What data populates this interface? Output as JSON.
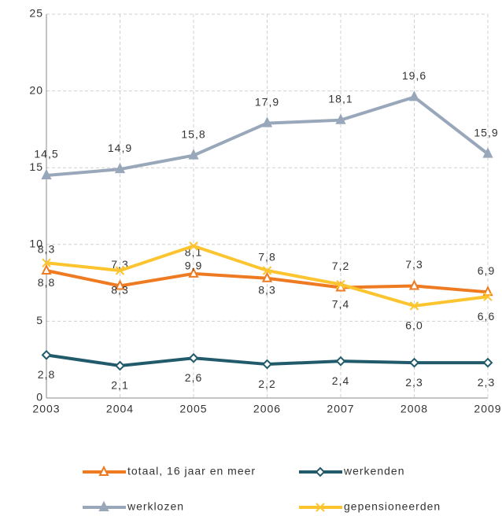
{
  "chart_data": {
    "type": "line",
    "categories": [
      "2003",
      "2004",
      "2005",
      "2006",
      "2007",
      "2008",
      "2009"
    ],
    "ylim": [
      0,
      25
    ],
    "yticks": [
      0,
      5,
      10,
      15,
      20,
      25
    ],
    "grid": true,
    "series": [
      {
        "name": "totaal, 16 jaar en meer",
        "color": "#ee7b22",
        "marker": "triangle-open",
        "label_side": "above",
        "values": [
          8.3,
          7.3,
          8.1,
          7.8,
          7.2,
          7.3,
          6.9
        ],
        "value_labels": [
          "8,3",
          "7,3",
          "8,1",
          "7,8",
          "7,2",
          "7,3",
          "6,9"
        ]
      },
      {
        "name": "werkenden",
        "color": "#215a6b",
        "marker": "diamond-open",
        "label_side": "below",
        "values": [
          2.8,
          2.1,
          2.6,
          2.2,
          2.4,
          2.3,
          2.3
        ],
        "value_labels": [
          "2,8",
          "2,1",
          "2,6",
          "2,2",
          "2,4",
          "2,3",
          "2,3"
        ]
      },
      {
        "name": "werklozen",
        "color": "#98a8ba",
        "marker": "triangle",
        "label_side": "above",
        "values": [
          14.5,
          14.9,
          15.8,
          17.9,
          18.1,
          19.6,
          15.9
        ],
        "value_labels": [
          "14,5",
          "14,9",
          "15,8",
          "17,9",
          "18,1",
          "19,6",
          "15,9"
        ]
      },
      {
        "name": "gepensioneerden",
        "color": "#fcc530",
        "marker": "x",
        "label_side": "below",
        "values": [
          8.8,
          8.3,
          9.9,
          8.3,
          7.4,
          6.0,
          6.6
        ],
        "value_labels": [
          "8,8",
          "8,3",
          "9,9",
          "8,3",
          "7,4",
          "6,0",
          "6,6"
        ]
      }
    ]
  }
}
